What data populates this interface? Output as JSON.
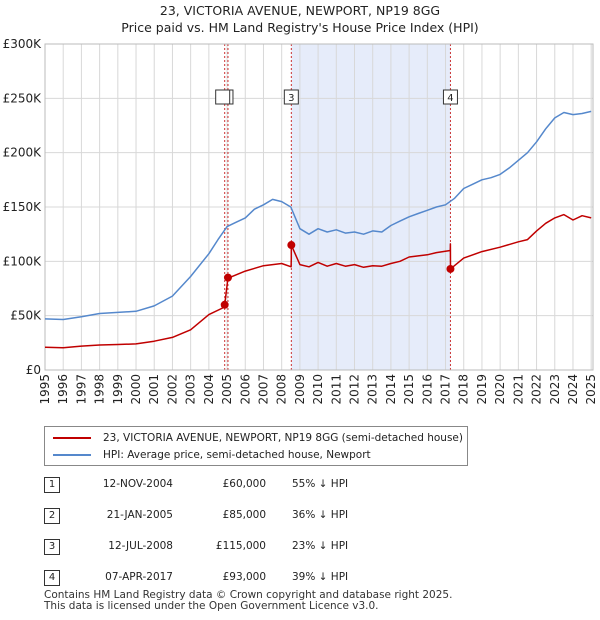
{
  "colors": {
    "property": "#c00000",
    "hpi": "#5588cc",
    "shade": "#e6ecfa",
    "grid": "#d8d8d8",
    "vline": "#cc3333"
  },
  "legend": {
    "property_label": "23, VICTORIA AVENUE, NEWPORT, NP19 8GG (semi-detached house)",
    "hpi_label": "HPI: Average price, semi-detached house, Newport"
  },
  "sales": [
    {
      "num": "1",
      "date": "12-NOV-2004",
      "price": "£60,000",
      "hpi": "55% ↓ HPI"
    },
    {
      "num": "2",
      "date": "21-JAN-2005",
      "price": "£85,000",
      "hpi": "36% ↓ HPI"
    },
    {
      "num": "3",
      "date": "12-JUL-2008",
      "price": "£115,000",
      "hpi": "23% ↓ HPI"
    },
    {
      "num": "4",
      "date": "07-APR-2017",
      "price": "£93,000",
      "hpi": "39% ↓ HPI"
    }
  ],
  "footer": {
    "line1": "Contains HM Land Registry data © Crown copyright and database right 2025.",
    "line2": "This data is licensed under the Open Government Licence v3.0."
  },
  "chart_data": {
    "type": "line",
    "title": "23, VICTORIA AVENUE, NEWPORT, NP19 8GG",
    "subtitle": "Price paid vs. HM Land Registry's House Price Index (HPI)",
    "xlabel": "",
    "ylabel": "",
    "xlim": [
      1995,
      2025.1
    ],
    "ylim": [
      0,
      300000
    ],
    "y_ticks": [
      {
        "value": 0,
        "label": "£0"
      },
      {
        "value": 50000,
        "label": "£50K"
      },
      {
        "value": 100000,
        "label": "£100K"
      },
      {
        "value": 150000,
        "label": "£150K"
      },
      {
        "value": 200000,
        "label": "£200K"
      },
      {
        "value": 250000,
        "label": "£250K"
      },
      {
        "value": 300000,
        "label": "£300K"
      }
    ],
    "x_ticks": [
      "1995",
      "1996",
      "1997",
      "1998",
      "1999",
      "2000",
      "2001",
      "2002",
      "2003",
      "2004",
      "2005",
      "2006",
      "2007",
      "2008",
      "2009",
      "2010",
      "2011",
      "2012",
      "2013",
      "2014",
      "2015",
      "2016",
      "2017",
      "2018",
      "2019",
      "2020",
      "2021",
      "2022",
      "2023",
      "2024",
      "2025"
    ],
    "grid": true,
    "shaded_period": [
      2008.53,
      2017.27
    ],
    "markers": [
      {
        "label": "1",
        "x": 2004.87,
        "y": 60000
      },
      {
        "label": "2",
        "x": 2005.05,
        "y": 85000
      },
      {
        "label": "3",
        "x": 2008.53,
        "y": 115000
      },
      {
        "label": "4",
        "x": 2017.27,
        "y": 93000
      }
    ],
    "marker_box_labels": [
      {
        "label": "2",
        "x": 2005.05
      },
      {
        "label": "3",
        "x": 2008.53
      },
      {
        "label": "4",
        "x": 2017.27
      }
    ],
    "series": [
      {
        "name": "23, VICTORIA AVENUE, NEWPORT, NP19 8GG (semi-detached house)",
        "x": [
          1995,
          1996,
          1997,
          1998,
          1999,
          2000,
          2001,
          2002,
          2003,
          2004,
          2004.87,
          2004.871,
          2005.05,
          2005.051,
          2006,
          2007,
          2008,
          2008.52,
          2008.53,
          2008.531,
          2009,
          2009.5,
          2010,
          2010.5,
          2011,
          2011.5,
          2012,
          2012.5,
          2013,
          2013.5,
          2014,
          2014.5,
          2015,
          2015.5,
          2016,
          2016.5,
          2017.26,
          2017.27,
          2017.271,
          2018,
          2019,
          2020,
          2021,
          2021.5,
          2022,
          2022.5,
          2023,
          2023.5,
          2024,
          2024.5,
          2025
        ],
        "values": [
          21000,
          20500,
          22000,
          23000,
          23500,
          24000,
          26500,
          30000,
          37000,
          51000,
          58000,
          60000,
          85000,
          84500,
          91000,
          96000,
          98000,
          95000,
          103000,
          115000,
          97000,
          95000,
          99000,
          95500,
          98000,
          95500,
          97000,
          94500,
          96000,
          95500,
          98000,
          100000,
          104000,
          105000,
          106000,
          108000,
          110000,
          116000,
          93000,
          103000,
          109000,
          113000,
          118000,
          120000,
          128000,
          135000,
          140000,
          143000,
          138000,
          142000,
          140000
        ]
      },
      {
        "name": "HPI: Average price, semi-detached house, Newport",
        "x": [
          1995,
          1996,
          1997,
          1998,
          1999,
          2000,
          2001,
          2002,
          2003,
          2004,
          2004.5,
          2005,
          2005.5,
          2006,
          2006.5,
          2007,
          2007.5,
          2008,
          2008.5,
          2009,
          2009.5,
          2010,
          2010.5,
          2011,
          2011.5,
          2012,
          2012.5,
          2013,
          2013.5,
          2014,
          2014.5,
          2015,
          2015.5,
          2016,
          2016.5,
          2017,
          2017.5,
          2018,
          2018.5,
          2019,
          2019.5,
          2020,
          2020.5,
          2021,
          2021.5,
          2022,
          2022.5,
          2023,
          2023.5,
          2024,
          2024.5,
          2025
        ],
        "values": [
          47000,
          46500,
          49000,
          52000,
          53000,
          54000,
          59000,
          68000,
          86000,
          107000,
          120000,
          132000,
          136000,
          140000,
          148000,
          152000,
          157000,
          155000,
          150000,
          130000,
          125000,
          130000,
          127000,
          129000,
          126000,
          127000,
          125000,
          128000,
          127000,
          133000,
          137000,
          141000,
          144000,
          147000,
          150000,
          152000,
          158000,
          167000,
          171000,
          175000,
          177000,
          180000,
          186000,
          193000,
          200000,
          210000,
          222000,
          232000,
          237000,
          235000,
          236000,
          238000
        ]
      }
    ]
  }
}
